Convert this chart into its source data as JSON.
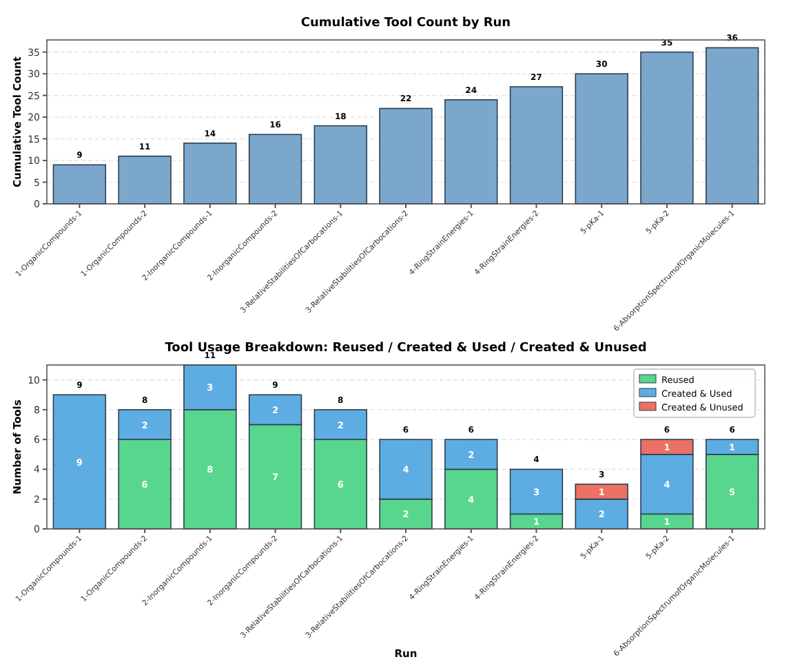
{
  "chart_data": [
    {
      "type": "bar",
      "title": "Cumulative Tool Count by Run",
      "ylabel": "Cumulative Tool Count",
      "categories": [
        "1-OrganicCompounds-1",
        "1-OrganicCompounds-2",
        "2-InorganicCompounds-1",
        "2-InorganicCompounds-2",
        "3-RelativeStabilitiesOfCarbocations-1",
        "3-RelativeStabilitiesOfCarbocations-2",
        "4-RingStrainEnergies-1",
        "4-RingStrainEnergies-2",
        "5-pKa-1",
        "5-pKa-2",
        "6-AbsorptionSpectrumofOrganicMolecules-1"
      ],
      "values": [
        9,
        11,
        14,
        16,
        18,
        22,
        24,
        27,
        30,
        35,
        36
      ],
      "color": "#7ba7cc",
      "data_labels": true,
      "ylim": [
        0,
        37.8
      ],
      "yticks": [
        0,
        5,
        10,
        15,
        20,
        25,
        30,
        35
      ],
      "grid": "y"
    },
    {
      "type": "bar",
      "title": "Tool Usage Breakdown: Reused / Created & Used / Created & Unused",
      "xlabel": "Run",
      "ylabel": "Number of Tools",
      "categories": [
        "1-OrganicCompounds-1",
        "1-OrganicCompounds-2",
        "2-InorganicCompounds-1",
        "2-InorganicCompounds-2",
        "3-RelativeStabilitiesOfCarbocations-1",
        "3-RelativeStabilitiesOfCarbocations-2",
        "4-RingStrainEnergies-1",
        "4-RingStrainEnergies-2",
        "5-pKa-1",
        "5-pKa-2",
        "6-AbsorptionSpectrumofOrganicMolecules-1"
      ],
      "stacked": true,
      "series": [
        {
          "name": "Reused",
          "color": "#58d68d",
          "values": [
            0,
            6,
            8,
            7,
            6,
            2,
            4,
            1,
            0,
            1,
            5
          ],
          "value_labels": [
            null,
            "6",
            "8",
            "7",
            "6",
            "2",
            "4",
            "1",
            null,
            "1",
            "5"
          ]
        },
        {
          "name": "Created & Used",
          "color": "#5dade2",
          "values": [
            9,
            2,
            3,
            2,
            2,
            4,
            2,
            3,
            2,
            4,
            1
          ],
          "value_labels": [
            "9",
            "2",
            "3",
            "2",
            "2",
            "4",
            "2",
            "3",
            "2",
            "4",
            "1"
          ]
        },
        {
          "name": "Created & Unused",
          "color": "#ec7063",
          "values": [
            0,
            0,
            0,
            0,
            0,
            0,
            0,
            0,
            1,
            1,
            0
          ],
          "value_labels": [
            null,
            null,
            null,
            null,
            null,
            null,
            null,
            null,
            "1",
            "1",
            null
          ]
        }
      ],
      "totals": [
        "9",
        "8",
        "11",
        "9",
        "8",
        "6",
        "6",
        "4",
        "3",
        "6",
        "6"
      ],
      "legend": "top right",
      "ylim": [
        0,
        11
      ],
      "yticks": [
        0,
        2,
        4,
        6,
        8,
        10
      ],
      "grid": "y"
    }
  ]
}
